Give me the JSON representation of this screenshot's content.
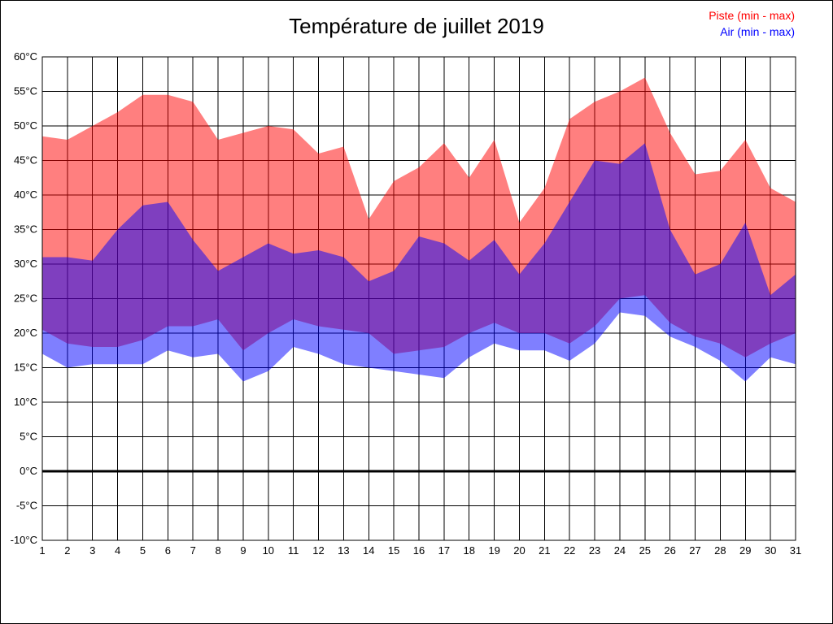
{
  "title": "Température de juillet 2019",
  "legend": {
    "piste": {
      "label": "Piste (min - max)",
      "color": "#ff0000"
    },
    "air": {
      "label": "Air (min - max)",
      "color": "#0000ff"
    }
  },
  "chart_data": {
    "type": "area",
    "title": "Température de juillet 2019",
    "xlabel": "",
    "ylabel": "",
    "x": [
      1,
      2,
      3,
      4,
      5,
      6,
      7,
      8,
      9,
      10,
      11,
      12,
      13,
      14,
      15,
      16,
      17,
      18,
      19,
      20,
      21,
      22,
      23,
      24,
      25,
      26,
      27,
      28,
      29,
      30,
      31
    ],
    "x_tick_labels": [
      "1",
      "2",
      "3",
      "4",
      "5",
      "6",
      "7",
      "8",
      "9",
      "10",
      "11",
      "12",
      "13",
      "14",
      "15",
      "16",
      "17",
      "18",
      "19",
      "20",
      "21",
      "22",
      "23",
      "24",
      "25",
      "26",
      "27",
      "28",
      "29",
      "30",
      "31"
    ],
    "ylim": [
      -10,
      60
    ],
    "y_ticks": [
      60,
      55,
      50,
      45,
      40,
      35,
      30,
      25,
      20,
      15,
      10,
      5,
      0,
      -5,
      -10
    ],
    "y_tick_labels": [
      "60°C",
      "55°C",
      "50°C",
      "45°C",
      "40°C",
      "35°C",
      "30°C",
      "25°C",
      "20°C",
      "15°C",
      "10°C",
      "5°C",
      "0°C",
      "-5°C",
      "-10°C"
    ],
    "grid": true,
    "legend_position": "top-right",
    "zero_line": 0,
    "series": [
      {
        "name": "Piste max",
        "values": [
          48.5,
          48,
          50,
          52,
          54.5,
          54.5,
          53.5,
          48,
          49,
          50,
          49.5,
          46,
          47,
          36.5,
          42,
          44,
          47.5,
          42.5,
          48,
          36,
          41,
          51,
          53.5,
          55,
          57,
          49,
          43,
          43.5,
          48,
          41,
          39
        ]
      },
      {
        "name": "Piste min",
        "values": [
          20.5,
          18.5,
          18,
          18,
          19,
          21,
          21,
          22,
          17.5,
          20,
          22,
          21,
          20.5,
          20,
          17,
          17.5,
          18,
          20,
          21.5,
          20,
          20,
          18.5,
          21,
          25,
          25.5,
          21.5,
          19.5,
          18.5,
          16.5,
          18.5,
          20
        ]
      },
      {
        "name": "Air max",
        "values": [
          31,
          31,
          30.5,
          35,
          38.5,
          39,
          33.5,
          29,
          31,
          33,
          31.5,
          32,
          31,
          27.5,
          29,
          34,
          33,
          30.5,
          33.5,
          28.5,
          33,
          39,
          45,
          44.5,
          47.5,
          35,
          28.5,
          30,
          36,
          25.5,
          28.5
        ]
      },
      {
        "name": "Air min",
        "values": [
          17,
          15,
          15.5,
          15.5,
          15.5,
          17.5,
          16.5,
          17,
          13,
          14.5,
          18,
          17,
          15.5,
          15,
          14.5,
          14,
          13.5,
          16.5,
          18.5,
          17.5,
          17.5,
          16,
          18.5,
          23,
          22.5,
          19.5,
          18,
          16,
          13,
          16.5,
          15.5
        ]
      }
    ],
    "colors": {
      "piste_fill": "rgba(255,0,0,0.5)",
      "air_fill": "rgba(0,0,255,0.5)",
      "overlap_rendered": "#8040c0",
      "grid": "#000000",
      "zero_line": "#000000",
      "plot_border": "#000000"
    }
  }
}
